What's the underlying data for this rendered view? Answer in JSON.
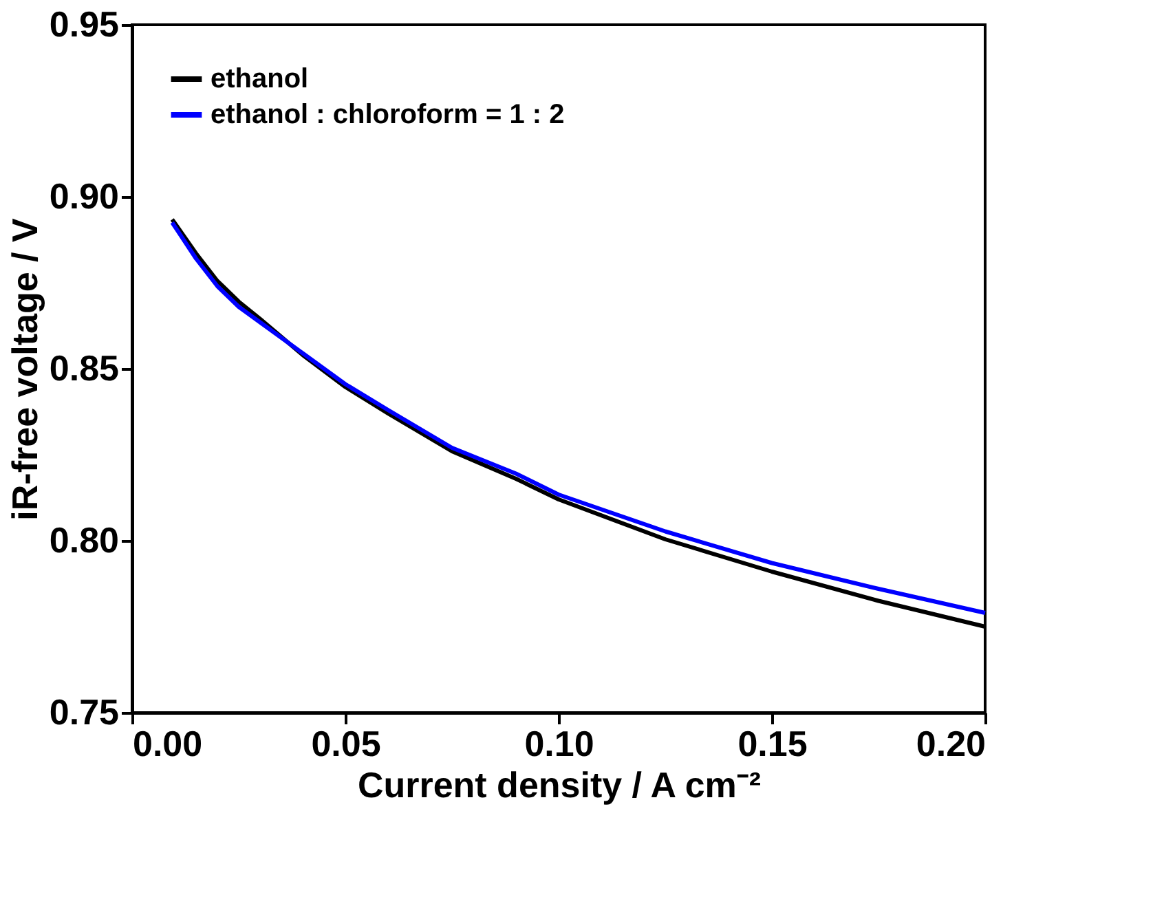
{
  "chart_data": {
    "type": "line",
    "xlabel": "Current density / A cm⁻²",
    "ylabel": "iR-free voltage / V",
    "xlim": [
      0,
      0.2
    ],
    "xticks": [
      {
        "value": 0,
        "label": "0.00"
      },
      {
        "value": 0.05,
        "label": "0.05"
      },
      {
        "value": 0.1,
        "label": "0.10"
      },
      {
        "value": 0.15,
        "label": "0.15"
      },
      {
        "value": 0.2,
        "label": "0.20"
      }
    ],
    "ylim": [
      0.75,
      0.95
    ],
    "yticks": [
      {
        "value": 0.75,
        "label": "0.75"
      },
      {
        "value": 0.8,
        "label": "0.80"
      },
      0.85,
      {
        "value": 0.9,
        "label": "0.90"
      },
      0.95
    ],
    "grid": false,
    "legend": "top left",
    "line_style": "solid",
    "marker": "none",
    "series": [
      {
        "name": "ethanol",
        "color": "#000000",
        "x": [
          0.0094,
          0.015,
          0.02,
          0.025,
          0.03,
          0.04,
          0.05,
          0.06,
          0.075,
          0.09,
          0.1,
          0.125,
          0.15,
          0.175,
          0.2
        ],
        "values": [
          0.8934,
          0.8835,
          0.8755,
          0.8695,
          0.8645,
          0.854,
          0.8447,
          0.837,
          0.826,
          0.818,
          0.812,
          0.8004,
          0.791,
          0.7825,
          0.775
        ]
      },
      {
        "name": "ethanol : chloroform  = 1 : 2",
        "color": "#0000ff",
        "x": [
          0.0094,
          0.015,
          0.02,
          0.025,
          0.03,
          0.04,
          0.05,
          0.06,
          0.075,
          0.09,
          0.1,
          0.125,
          0.15,
          0.175,
          0.2
        ],
        "values": [
          0.8925,
          0.882,
          0.874,
          0.868,
          0.8635,
          0.8545,
          0.8455,
          0.838,
          0.827,
          0.8195,
          0.8134,
          0.8027,
          0.7935,
          0.786,
          0.779
        ]
      }
    ]
  }
}
